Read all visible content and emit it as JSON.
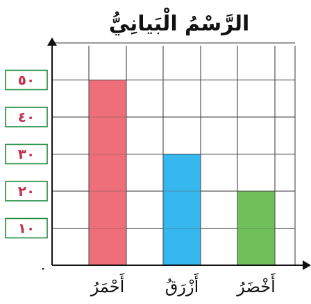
{
  "chart_data": {
    "type": "bar",
    "title": "الرَّسْمُ الْبَيانِيُّ",
    "categories": [
      "أَحْمَرُ",
      "أَزْرَقُ",
      "أَخْضَرُ"
    ],
    "values": [
      50,
      30,
      20
    ],
    "bar_colors": [
      "#ee6f7a",
      "#36b7ee",
      "#6fc05a"
    ],
    "y_ticks": [
      "١٠",
      "٢٠",
      "٣٠",
      "٤٠",
      "٥٠"
    ],
    "y_origin_label": "٠",
    "ylim": [
      0,
      60
    ],
    "grid": true,
    "tick_box_border": "#1b8a3a",
    "tick_text_color": "#c0304a"
  }
}
